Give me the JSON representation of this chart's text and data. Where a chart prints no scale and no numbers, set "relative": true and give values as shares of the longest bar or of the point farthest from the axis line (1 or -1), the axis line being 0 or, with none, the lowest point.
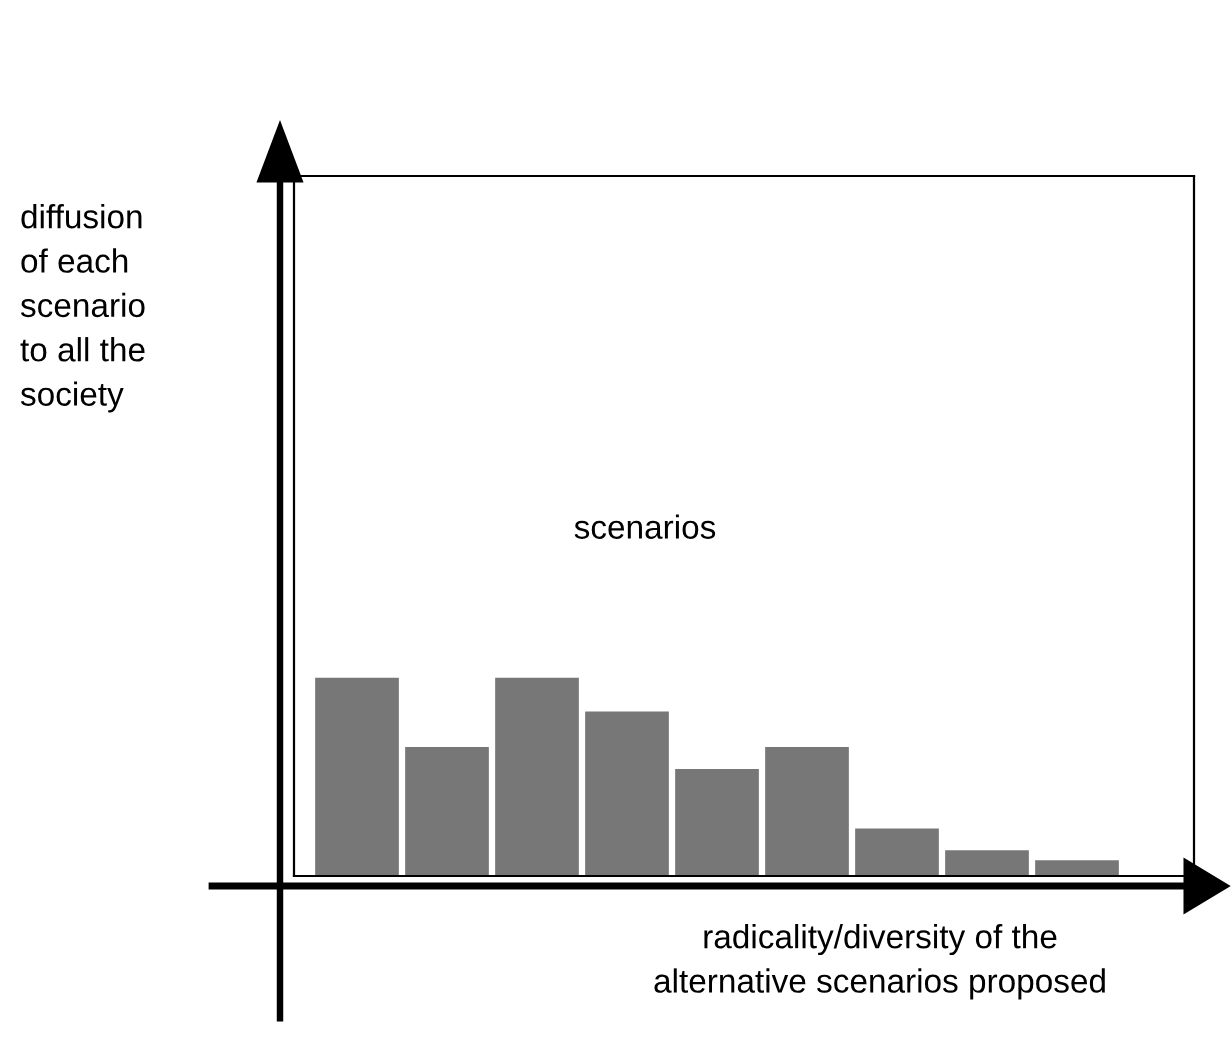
{
  "chart_data": {
    "type": "bar",
    "relative": true,
    "xlabel": "radicality/diversity of the\nalternative scenarios proposed",
    "annotations": [
      "scenarios",
      "diffusion\nof each\nscenario\nto all the\nsociety"
    ],
    "categories": [
      null,
      null,
      null,
      null,
      null,
      null,
      null,
      null,
      null
    ],
    "values": [
      1,
      0.65,
      1,
      0.83,
      0.54,
      0.65,
      0.24,
      0.13,
      0.08
    ],
    "color": "#777777"
  }
}
